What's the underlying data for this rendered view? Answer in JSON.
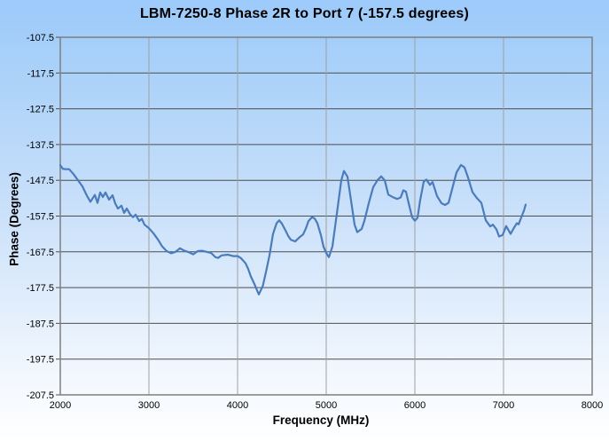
{
  "page": {
    "title": "LBM-7250-8 Phase 2R to Port 7 (-157.5 degrees)"
  },
  "colors": {
    "background_top": "#9ccafa",
    "background_bottom": "#ffffff",
    "plot_border": "#7f7f7f",
    "grid_horizontal": "#4d4d4d",
    "grid_vertical": "#a0a0a0",
    "line": "#4a7cbc",
    "text": "#000000"
  },
  "chart_data": {
    "type": "line",
    "title": "LBM-7250-8 Phase 2R to Port 7 (-157.5 degrees)",
    "xlabel": "Frequency (MHz)",
    "ylabel": "Phase (Degrees)",
    "xlim": [
      2000,
      8000
    ],
    "ylim": [
      -207.5,
      -107.5
    ],
    "x_ticks": [
      2000,
      3000,
      4000,
      5000,
      6000,
      7000,
      8000
    ],
    "y_ticks": [
      -107.5,
      -117.5,
      -127.5,
      -137.5,
      -147.5,
      -157.5,
      -167.5,
      -177.5,
      -187.5,
      -197.5,
      -207.5
    ],
    "grid": true,
    "legend": "none",
    "series": [
      {
        "name": "Phase 2R to Port 7",
        "color": "#4a7cbc",
        "points": [
          [
            2000,
            -143.3
          ],
          [
            2030,
            -144.3
          ],
          [
            2060,
            -144.4
          ],
          [
            2100,
            -144.4
          ],
          [
            2150,
            -145.8
          ],
          [
            2200,
            -147.5
          ],
          [
            2250,
            -149.2
          ],
          [
            2300,
            -151.8
          ],
          [
            2340,
            -153.5
          ],
          [
            2390,
            -151.6
          ],
          [
            2420,
            -153.8
          ],
          [
            2450,
            -150.9
          ],
          [
            2480,
            -152.2
          ],
          [
            2510,
            -150.9
          ],
          [
            2550,
            -152.9
          ],
          [
            2590,
            -151.7
          ],
          [
            2620,
            -154.0
          ],
          [
            2650,
            -155.4
          ],
          [
            2690,
            -154.6
          ],
          [
            2720,
            -156.6
          ],
          [
            2750,
            -155.4
          ],
          [
            2790,
            -157.1
          ],
          [
            2820,
            -157.8
          ],
          [
            2850,
            -157.1
          ],
          [
            2890,
            -158.9
          ],
          [
            2920,
            -158.3
          ],
          [
            2950,
            -159.9
          ],
          [
            3000,
            -160.9
          ],
          [
            3050,
            -162.3
          ],
          [
            3100,
            -164.0
          ],
          [
            3150,
            -166.0
          ],
          [
            3200,
            -167.3
          ],
          [
            3250,
            -167.9
          ],
          [
            3300,
            -167.5
          ],
          [
            3350,
            -166.5
          ],
          [
            3400,
            -167.2
          ],
          [
            3450,
            -167.6
          ],
          [
            3500,
            -168.2
          ],
          [
            3550,
            -167.3
          ],
          [
            3600,
            -167.2
          ],
          [
            3650,
            -167.5
          ],
          [
            3700,
            -167.8
          ],
          [
            3750,
            -169.0
          ],
          [
            3780,
            -169.2
          ],
          [
            3820,
            -168.5
          ],
          [
            3890,
            -168.3
          ],
          [
            3950,
            -168.7
          ],
          [
            4000,
            -168.7
          ],
          [
            4040,
            -169.3
          ],
          [
            4090,
            -170.7
          ],
          [
            4120,
            -172.3
          ],
          [
            4150,
            -174.4
          ],
          [
            4190,
            -176.5
          ],
          [
            4220,
            -178.3
          ],
          [
            4240,
            -179.4
          ],
          [
            4285,
            -177.0
          ],
          [
            4320,
            -173.2
          ],
          [
            4360,
            -168.5
          ],
          [
            4400,
            -162.5
          ],
          [
            4440,
            -159.5
          ],
          [
            4470,
            -158.7
          ],
          [
            4500,
            -159.6
          ],
          [
            4540,
            -161.5
          ],
          [
            4570,
            -163.0
          ],
          [
            4600,
            -164.1
          ],
          [
            4650,
            -164.6
          ],
          [
            4700,
            -163.4
          ],
          [
            4740,
            -162.6
          ],
          [
            4770,
            -161.0
          ],
          [
            4800,
            -158.9
          ],
          [
            4840,
            -157.8
          ],
          [
            4870,
            -158.2
          ],
          [
            4900,
            -159.5
          ],
          [
            4940,
            -162.8
          ],
          [
            4970,
            -166.1
          ],
          [
            5000,
            -167.8
          ],
          [
            5030,
            -169.0
          ],
          [
            5070,
            -166.0
          ],
          [
            5120,
            -156.8
          ],
          [
            5170,
            -147.5
          ],
          [
            5200,
            -144.9
          ],
          [
            5240,
            -146.5
          ],
          [
            5270,
            -151.5
          ],
          [
            5320,
            -159.9
          ],
          [
            5350,
            -162.0
          ],
          [
            5400,
            -161.1
          ],
          [
            5430,
            -158.9
          ],
          [
            5480,
            -153.9
          ],
          [
            5530,
            -149.4
          ],
          [
            5580,
            -147.4
          ],
          [
            5620,
            -146.4
          ],
          [
            5660,
            -147.5
          ],
          [
            5700,
            -151.5
          ],
          [
            5750,
            -152.2
          ],
          [
            5800,
            -152.7
          ],
          [
            5840,
            -152.3
          ],
          [
            5870,
            -150.3
          ],
          [
            5900,
            -150.7
          ],
          [
            5930,
            -153.9
          ],
          [
            5970,
            -157.9
          ],
          [
            6000,
            -158.8
          ],
          [
            6030,
            -158.0
          ],
          [
            6060,
            -153.0
          ],
          [
            6100,
            -147.9
          ],
          [
            6130,
            -147.3
          ],
          [
            6170,
            -148.8
          ],
          [
            6200,
            -148.0
          ],
          [
            6250,
            -151.9
          ],
          [
            6300,
            -153.9
          ],
          [
            6340,
            -154.4
          ],
          [
            6380,
            -153.8
          ],
          [
            6420,
            -150.0
          ],
          [
            6470,
            -145.3
          ],
          [
            6520,
            -143.2
          ],
          [
            6560,
            -143.9
          ],
          [
            6600,
            -146.7
          ],
          [
            6650,
            -150.8
          ],
          [
            6700,
            -152.5
          ],
          [
            6750,
            -153.8
          ],
          [
            6800,
            -158.7
          ],
          [
            6850,
            -160.4
          ],
          [
            6880,
            -159.9
          ],
          [
            6920,
            -161.2
          ],
          [
            6950,
            -163.2
          ],
          [
            6990,
            -162.8
          ],
          [
            7030,
            -160.3
          ],
          [
            7080,
            -162.5
          ],
          [
            7120,
            -160.7
          ],
          [
            7150,
            -159.5
          ],
          [
            7170,
            -159.8
          ],
          [
            7200,
            -157.9
          ],
          [
            7230,
            -156.0
          ],
          [
            7250,
            -154.3
          ]
        ]
      }
    ]
  }
}
